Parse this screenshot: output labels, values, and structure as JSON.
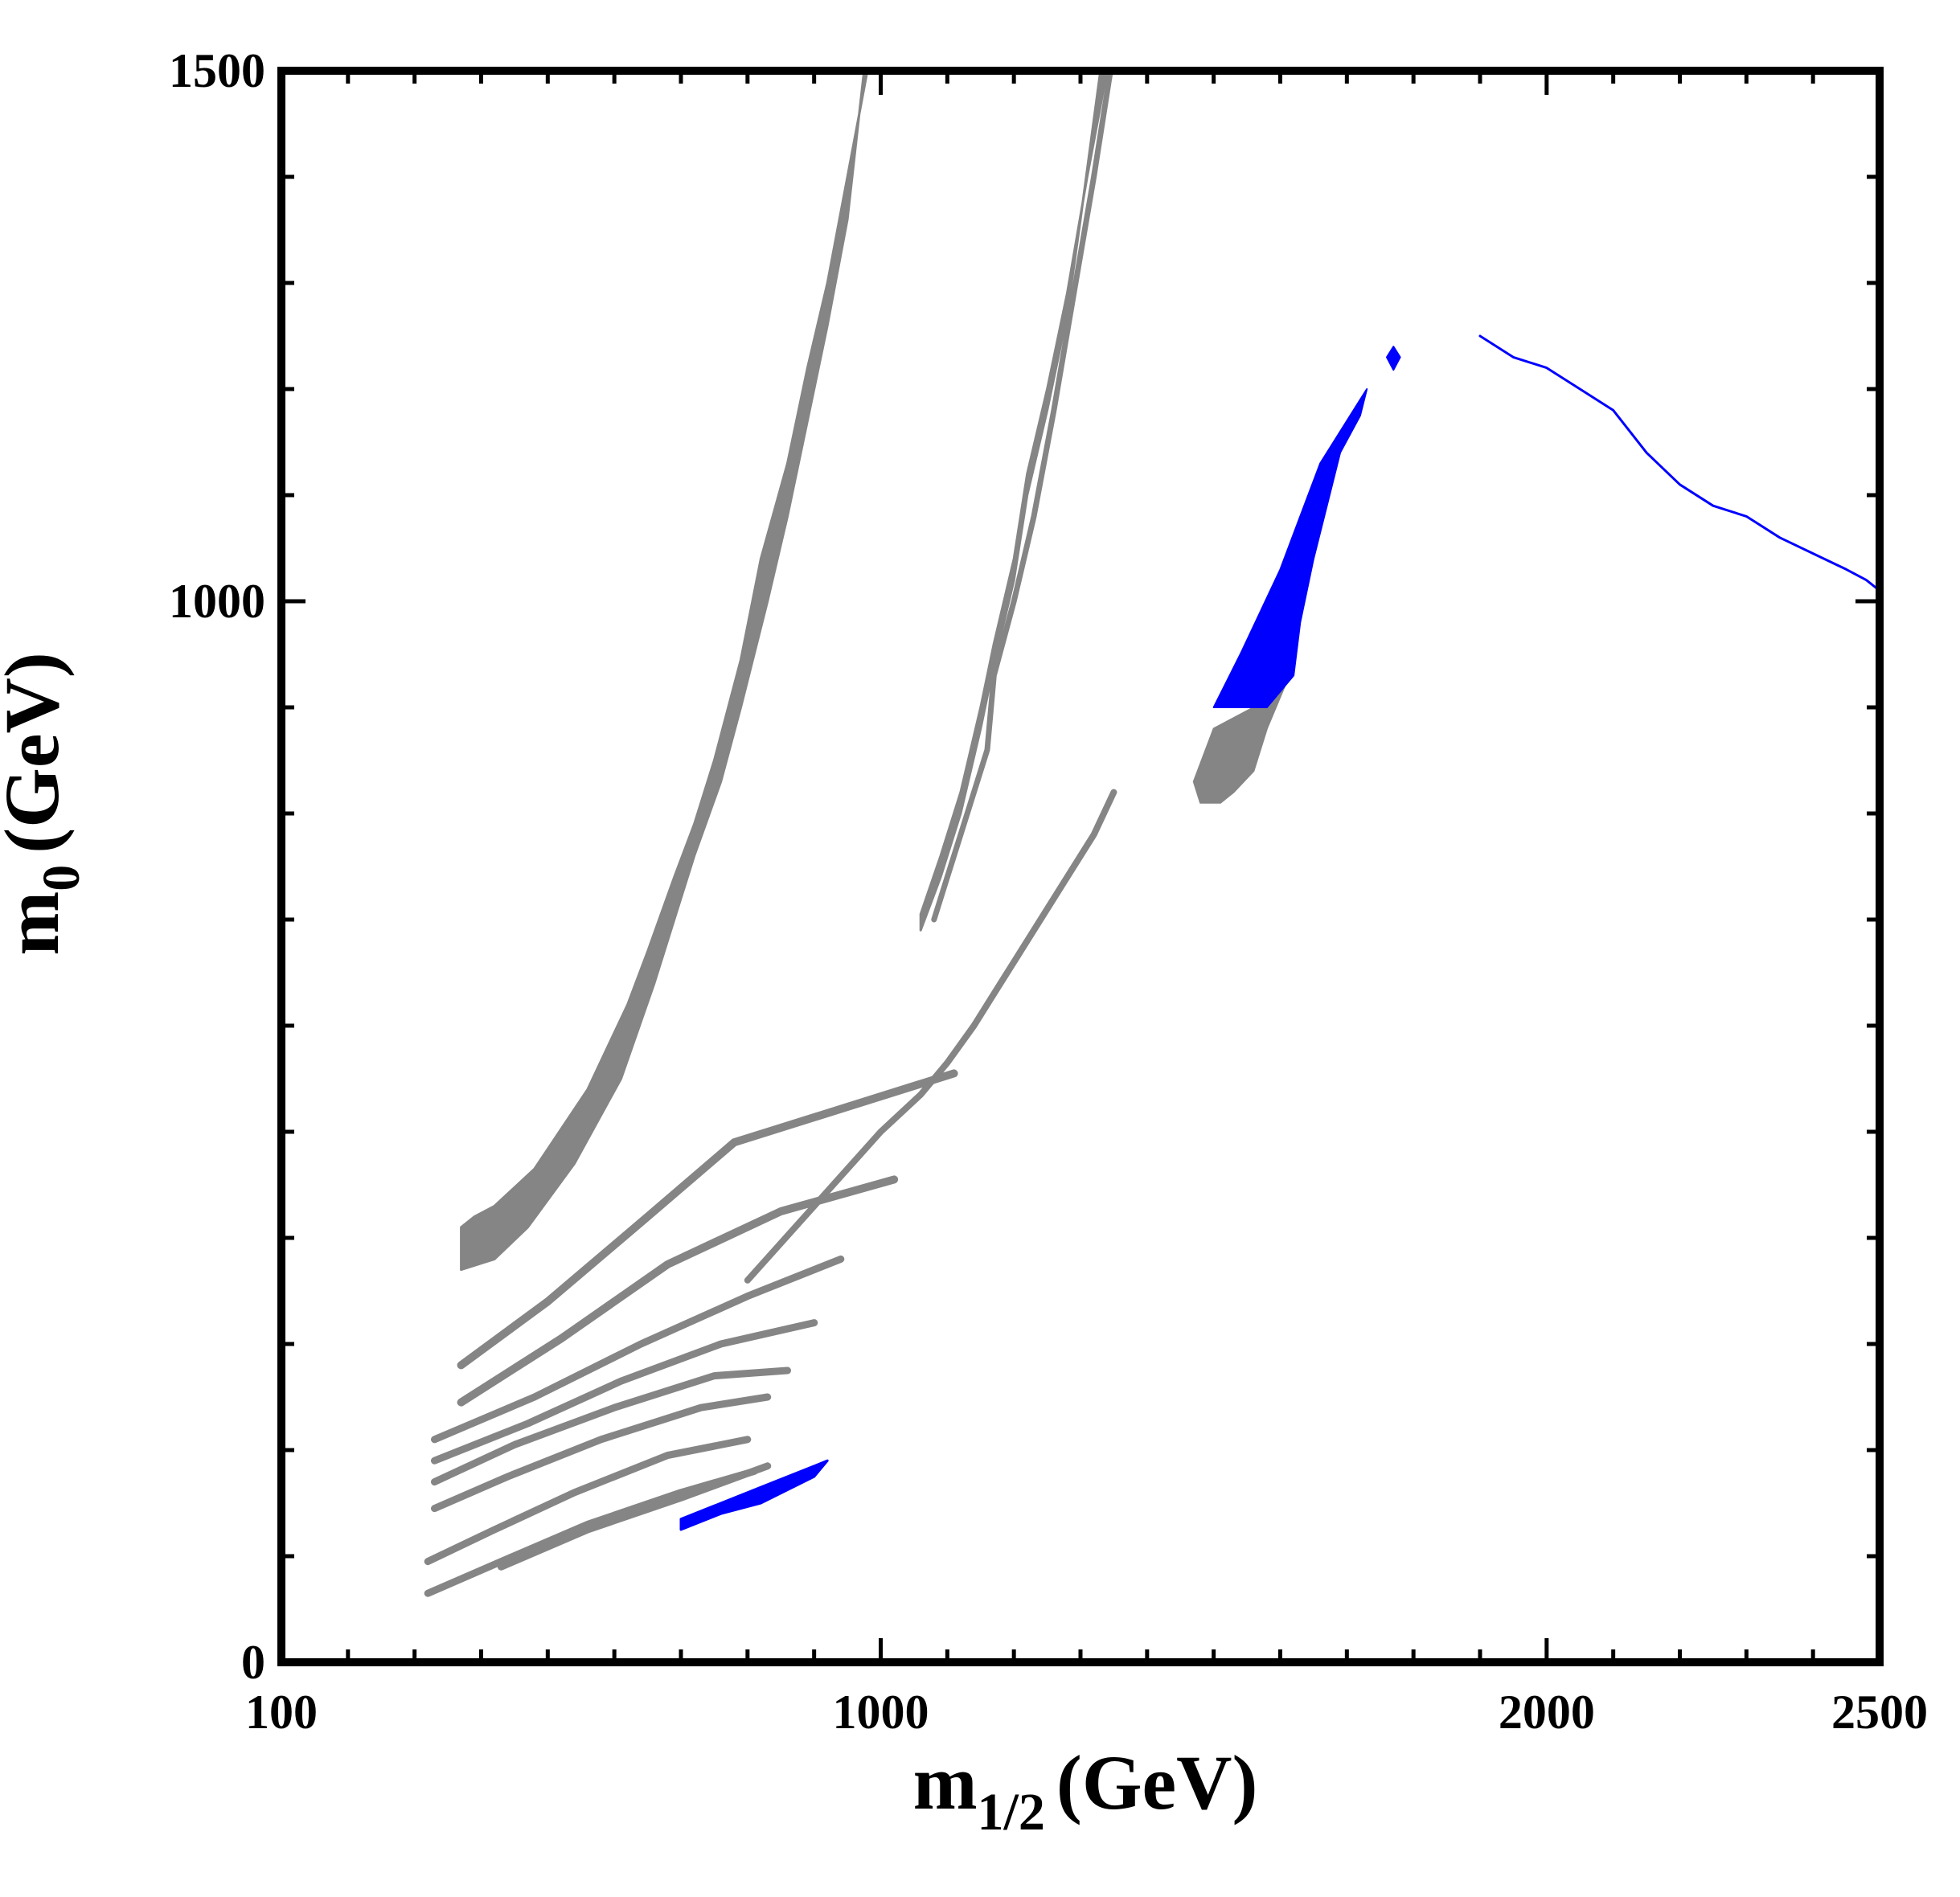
{
  "chart_data": {
    "type": "contour",
    "title": "",
    "xlabel": {
      "main": "m",
      "subscript": "1/2",
      "unit": "(GeV)"
    },
    "ylabel": {
      "main": "m",
      "subscript": "0",
      "unit": "(GeV)"
    },
    "xlim": [
      100,
      2500
    ],
    "ylim": [
      0,
      1500
    ],
    "x_tick_labels": [
      {
        "value": 100,
        "label": "100"
      },
      {
        "value": 1000,
        "label": "1000"
      },
      {
        "value": 2000,
        "label": "2000"
      },
      {
        "value": 2500,
        "label": "2500"
      }
    ],
    "y_tick_labels": [
      {
        "value": 0,
        "label": "0"
      },
      {
        "value": 1000,
        "label": "1000"
      },
      {
        "value": 1500,
        "label": "1500"
      }
    ],
    "x_minor_ticks": [
      200,
      300,
      400,
      500,
      600,
      700,
      800,
      900,
      1100,
      1200,
      1300,
      1400,
      1500,
      1600,
      1700,
      1800,
      1900,
      2100,
      2200,
      2300,
      2400
    ],
    "y_minor_ticks": [
      100,
      200,
      300,
      400,
      500,
      600,
      700,
      800,
      900,
      1100,
      1200,
      1300,
      1400
    ],
    "colors": {
      "gray": "#858585",
      "blue": "#0000ff",
      "axis": "#000000"
    },
    "series": [
      {
        "name": "gray-upper-band",
        "color": "gray",
        "style": "band",
        "upper": [
          [
            370,
            410
          ],
          [
            390,
            420
          ],
          [
            420,
            430
          ],
          [
            480,
            465
          ],
          [
            560,
            540
          ],
          [
            620,
            620
          ],
          [
            650,
            670
          ],
          [
            690,
            740
          ],
          [
            720,
            790
          ],
          [
            750,
            850
          ],
          [
            790,
            945
          ],
          [
            820,
            1040
          ],
          [
            860,
            1130
          ],
          [
            890,
            1220
          ],
          [
            920,
            1300
          ],
          [
            950,
            1400
          ],
          [
            980,
            1500
          ]
        ],
        "lower": [
          [
            370,
            370
          ],
          [
            420,
            380
          ],
          [
            470,
            410
          ],
          [
            540,
            470
          ],
          [
            610,
            550
          ],
          [
            660,
            640
          ],
          [
            690,
            700
          ],
          [
            720,
            760
          ],
          [
            760,
            830
          ],
          [
            790,
            900
          ],
          [
            830,
            1000
          ],
          [
            860,
            1080
          ],
          [
            890,
            1170
          ],
          [
            920,
            1260
          ],
          [
            950,
            1360
          ],
          [
            975,
            1500
          ]
        ]
      },
      {
        "name": "gray-second-band",
        "color": "gray",
        "style": "band",
        "upper": [
          [
            1060,
            705
          ],
          [
            1090,
            760
          ],
          [
            1120,
            820
          ],
          [
            1150,
            900
          ],
          [
            1170,
            960
          ],
          [
            1200,
            1040
          ],
          [
            1220,
            1120
          ],
          [
            1250,
            1200
          ],
          [
            1280,
            1290
          ],
          [
            1310,
            1400
          ],
          [
            1340,
            1500
          ]
        ],
        "lower": [
          [
            1060,
            690
          ],
          [
            1090,
            740
          ],
          [
            1120,
            800
          ],
          [
            1150,
            880
          ],
          [
            1170,
            940
          ],
          [
            1200,
            1020
          ],
          [
            1220,
            1100
          ],
          [
            1250,
            1180
          ],
          [
            1280,
            1270
          ],
          [
            1300,
            1360
          ],
          [
            1330,
            1500
          ]
        ]
      },
      {
        "name": "gray-steep-line",
        "color": "gray",
        "style": "line",
        "width": 7,
        "points": [
          [
            1080,
            700
          ],
          [
            1100,
            740
          ],
          [
            1130,
            800
          ],
          [
            1160,
            860
          ],
          [
            1170,
            930
          ],
          [
            1200,
            1000
          ],
          [
            1230,
            1080
          ],
          [
            1260,
            1180
          ],
          [
            1290,
            1290
          ],
          [
            1320,
            1400
          ],
          [
            1345,
            1500
          ]
        ]
      },
      {
        "name": "gray-diagonal",
        "color": "gray",
        "style": "line",
        "width": 8,
        "points": [
          [
            800,
            360
          ],
          [
            900,
            430
          ],
          [
            1000,
            500
          ],
          [
            1060,
            535
          ],
          [
            1100,
            565
          ],
          [
            1140,
            600
          ],
          [
            1170,
            630
          ],
          [
            1200,
            660
          ],
          [
            1240,
            700
          ],
          [
            1280,
            740
          ],
          [
            1320,
            780
          ],
          [
            1350,
            820
          ]
        ]
      },
      {
        "name": "gray-wiggle-1",
        "color": "gray",
        "style": "line",
        "width": 10,
        "points": [
          [
            370,
            280
          ],
          [
            500,
            340
          ],
          [
            650,
            420
          ],
          [
            780,
            490
          ],
          [
            1110,
            555
          ]
        ]
      },
      {
        "name": "gray-wiggle-2",
        "color": "gray",
        "style": "line",
        "width": 10,
        "points": [
          [
            370,
            245
          ],
          [
            520,
            305
          ],
          [
            680,
            375
          ],
          [
            850,
            425
          ],
          [
            1020,
            455
          ]
        ]
      },
      {
        "name": "gray-wiggle-3",
        "color": "gray",
        "style": "line",
        "width": 9,
        "points": [
          [
            330,
            210
          ],
          [
            480,
            250
          ],
          [
            640,
            300
          ],
          [
            800,
            345
          ],
          [
            940,
            380
          ]
        ]
      },
      {
        "name": "gray-wiggle-4",
        "color": "gray",
        "style": "line",
        "width": 9,
        "points": [
          [
            330,
            190
          ],
          [
            470,
            225
          ],
          [
            610,
            265
          ],
          [
            760,
            300
          ],
          [
            900,
            320
          ]
        ]
      },
      {
        "name": "gray-wiggle-5",
        "color": "gray",
        "style": "line",
        "width": 9,
        "points": [
          [
            330,
            170
          ],
          [
            450,
            205
          ],
          [
            600,
            240
          ],
          [
            750,
            270
          ],
          [
            860,
            275
          ]
        ]
      },
      {
        "name": "gray-wiggle-6",
        "color": "gray",
        "style": "line",
        "width": 9,
        "points": [
          [
            330,
            145
          ],
          [
            440,
            175
          ],
          [
            580,
            210
          ],
          [
            730,
            240
          ],
          [
            830,
            250
          ]
        ]
      },
      {
        "name": "gray-wiggle-7",
        "color": "gray",
        "style": "line",
        "width": 9,
        "points": [
          [
            320,
            95
          ],
          [
            420,
            125
          ],
          [
            540,
            160
          ],
          [
            680,
            195
          ],
          [
            800,
            210
          ]
        ]
      },
      {
        "name": "gray-wiggle-8",
        "color": "gray",
        "style": "line",
        "width": 9,
        "points": [
          [
            320,
            65
          ],
          [
            430,
            95
          ],
          [
            560,
            130
          ],
          [
            700,
            160
          ],
          [
            810,
            180
          ]
        ]
      },
      {
        "name": "gray-wiggle-9",
        "color": "gray",
        "style": "line",
        "width": 9,
        "points": [
          [
            430,
            90
          ],
          [
            560,
            125
          ],
          [
            700,
            155
          ],
          [
            830,
            185
          ]
        ]
      },
      {
        "name": "gray-lower-cluster",
        "color": "gray",
        "style": "fill",
        "points": [
          [
            1500,
            880
          ],
          [
            1560,
            900
          ],
          [
            1610,
            925
          ],
          [
            1580,
            880
          ],
          [
            1560,
            840
          ],
          [
            1530,
            820
          ],
          [
            1510,
            810
          ],
          [
            1480,
            810
          ],
          [
            1470,
            830
          ]
        ]
      },
      {
        "name": "blue-main-region",
        "color": "blue",
        "style": "fill",
        "points": [
          [
            1500,
            900
          ],
          [
            1540,
            950
          ],
          [
            1570,
            990
          ],
          [
            1600,
            1030
          ],
          [
            1630,
            1080
          ],
          [
            1660,
            1130
          ],
          [
            1700,
            1170
          ],
          [
            1730,
            1200
          ],
          [
            1720,
            1175
          ],
          [
            1690,
            1140
          ],
          [
            1670,
            1090
          ],
          [
            1650,
            1040
          ],
          [
            1630,
            980
          ],
          [
            1620,
            930
          ],
          [
            1580,
            900
          ]
        ]
      },
      {
        "name": "blue-small-island",
        "color": "blue",
        "style": "fill",
        "points": [
          [
            1760,
            1230
          ],
          [
            1770,
            1240
          ],
          [
            1780,
            1230
          ],
          [
            1770,
            1218
          ]
        ]
      },
      {
        "name": "blue-lower-band",
        "color": "blue",
        "style": "band",
        "upper": [
          [
            700,
            135
          ],
          [
            760,
            150
          ],
          [
            820,
            165
          ],
          [
            920,
            190
          ]
        ],
        "lower": [
          [
            700,
            125
          ],
          [
            760,
            140
          ],
          [
            820,
            150
          ],
          [
            900,
            175
          ]
        ]
      },
      {
        "name": "blue-outline-right",
        "color": "blue",
        "style": "line",
        "width": 3,
        "points": [
          [
            1900,
            1250
          ],
          [
            1950,
            1230
          ],
          [
            2000,
            1220
          ],
          [
            2050,
            1200
          ],
          [
            2100,
            1180
          ],
          [
            2150,
            1140
          ],
          [
            2200,
            1110
          ],
          [
            2250,
            1090
          ],
          [
            2300,
            1080
          ],
          [
            2350,
            1060
          ],
          [
            2400,
            1045
          ],
          [
            2450,
            1030
          ],
          [
            2480,
            1020
          ],
          [
            2500,
            1010
          ]
        ]
      }
    ]
  }
}
